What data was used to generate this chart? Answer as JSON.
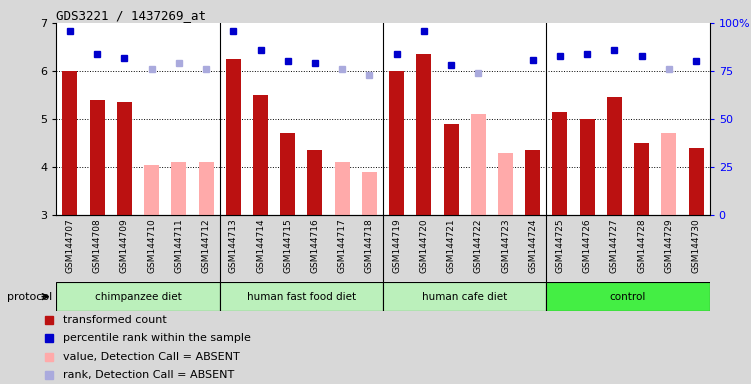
{
  "title": "GDS3221 / 1437269_at",
  "samples": [
    "GSM144707",
    "GSM144708",
    "GSM144709",
    "GSM144710",
    "GSM144711",
    "GSM144712",
    "GSM144713",
    "GSM144714",
    "GSM144715",
    "GSM144716",
    "GSM144717",
    "GSM144718",
    "GSM144719",
    "GSM144720",
    "GSM144721",
    "GSM144722",
    "GSM144723",
    "GSM144724",
    "GSM144725",
    "GSM144726",
    "GSM144727",
    "GSM144728",
    "GSM144729",
    "GSM144730"
  ],
  "bar_values": [
    6.0,
    5.4,
    5.35,
    null,
    null,
    null,
    6.25,
    5.5,
    4.7,
    4.35,
    null,
    null,
    6.0,
    6.35,
    4.9,
    null,
    null,
    4.35,
    5.15,
    5.0,
    5.45,
    4.5,
    null,
    4.4
  ],
  "absent_bar_values": [
    null,
    null,
    null,
    4.05,
    4.1,
    4.1,
    null,
    null,
    null,
    null,
    4.1,
    3.9,
    null,
    null,
    null,
    5.1,
    4.3,
    null,
    null,
    null,
    null,
    null,
    4.7,
    null
  ],
  "rank_values": [
    96,
    84,
    82,
    null,
    null,
    null,
    96,
    86,
    80,
    79,
    null,
    null,
    84,
    96,
    78,
    null,
    null,
    81,
    83,
    84,
    86,
    83,
    null,
    80
  ],
  "absent_rank_values": [
    null,
    null,
    null,
    76,
    79,
    76,
    null,
    null,
    null,
    null,
    76,
    73,
    null,
    null,
    null,
    74,
    null,
    null,
    null,
    null,
    null,
    null,
    76,
    null
  ],
  "groups": [
    {
      "label": "chimpanzee diet",
      "start": 0,
      "end": 6
    },
    {
      "label": "human fast food diet",
      "start": 6,
      "end": 12
    },
    {
      "label": "human cafe diet",
      "start": 12,
      "end": 18
    },
    {
      "label": "control",
      "start": 18,
      "end": 24
    }
  ],
  "group_colors": [
    "#bbf0bb",
    "#bbf0bb",
    "#bbf0bb",
    "#44ee44"
  ],
  "ylim": [
    3,
    7
  ],
  "y2lim": [
    0,
    100
  ],
  "yticks": [
    3,
    4,
    5,
    6,
    7
  ],
  "y2ticks": [
    0,
    25,
    50,
    75,
    100
  ],
  "bar_color": "#bb1111",
  "absent_bar_color": "#ffaaaa",
  "rank_color": "#0000cc",
  "absent_rank_color": "#aaaadd",
  "fig_bg": "#d8d8d8",
  "plot_bg": "#ffffff",
  "xtick_bg": "#cccccc",
  "bar_width": 0.55
}
